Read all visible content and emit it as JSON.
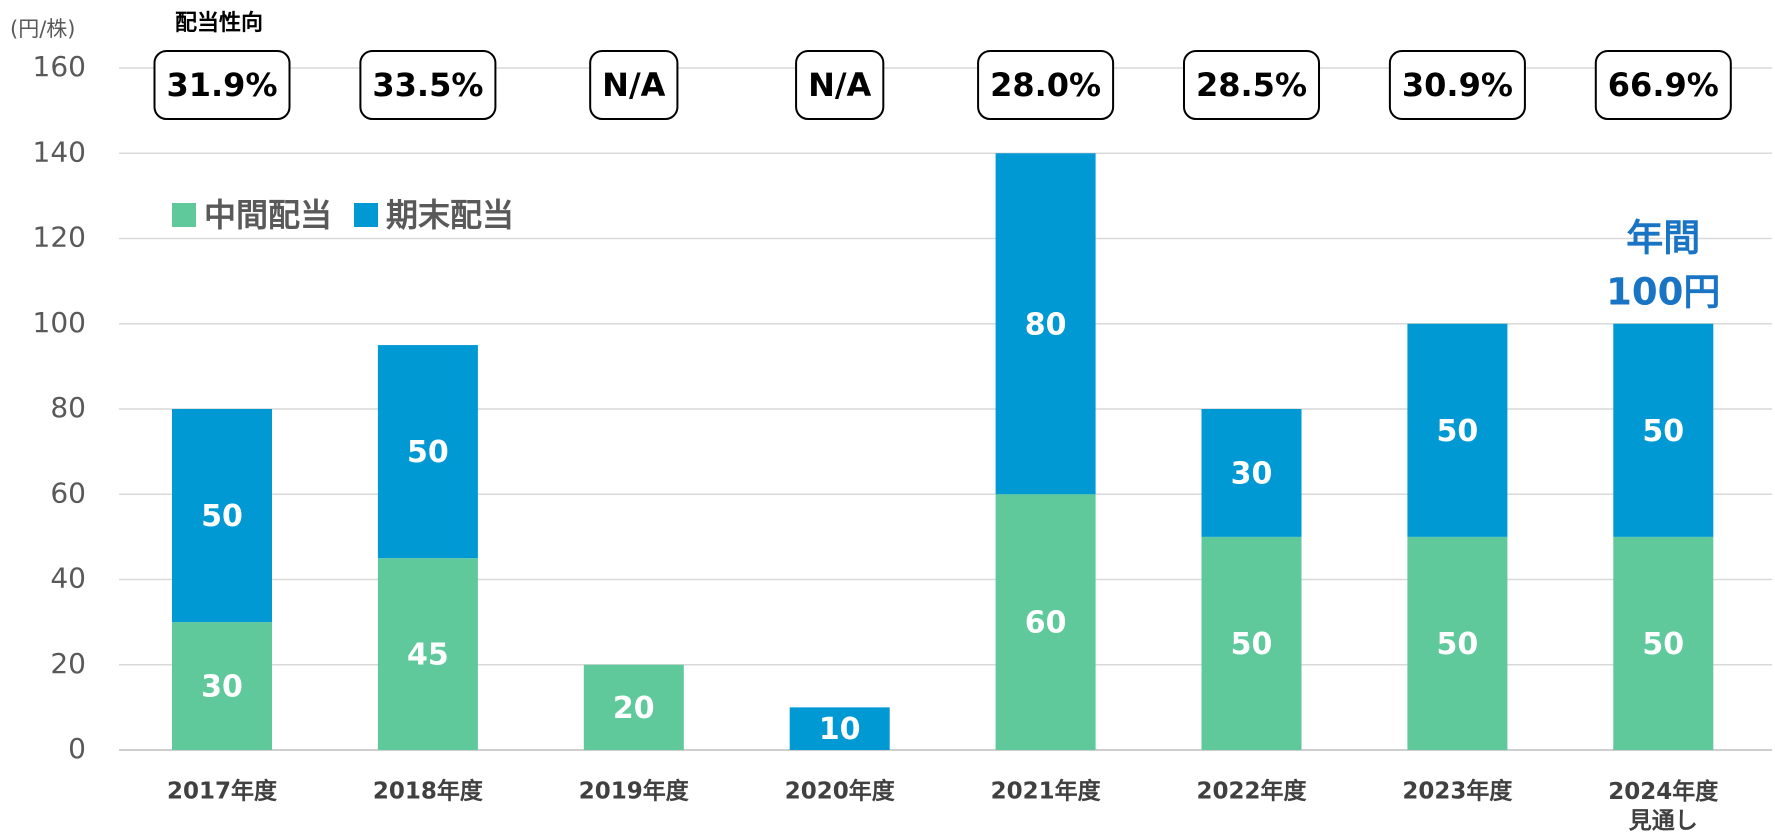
{
  "chart_data": {
    "type": "stacked_bar",
    "unit_label": "(円/株)",
    "categories": [
      "2017年度",
      "2018年度",
      "2019年度",
      "2020年度",
      "2021年度",
      "2022年度",
      "2023年度",
      "2024年度\n見通し"
    ],
    "series": [
      {
        "name": "中間配当",
        "color": "#5fc99c",
        "values": [
          30,
          45,
          20,
          null,
          60,
          50,
          50,
          50
        ]
      },
      {
        "name": "期末配当",
        "color": "#0099d4",
        "values": [
          50,
          50,
          null,
          10,
          80,
          30,
          50,
          50
        ]
      }
    ],
    "ylim": [
      0,
      160
    ],
    "yticks": [
      0,
      20,
      40,
      60,
      80,
      100,
      120,
      140,
      160
    ],
    "grid": true,
    "payout_ratio": {
      "title": "配当性向",
      "labels": [
        "31.9%",
        "33.5%",
        "N/A",
        "N/A",
        "28.0%",
        "28.5%",
        "30.9%",
        "66.9%"
      ]
    },
    "annotation": [
      "年間",
      "100円"
    ]
  }
}
